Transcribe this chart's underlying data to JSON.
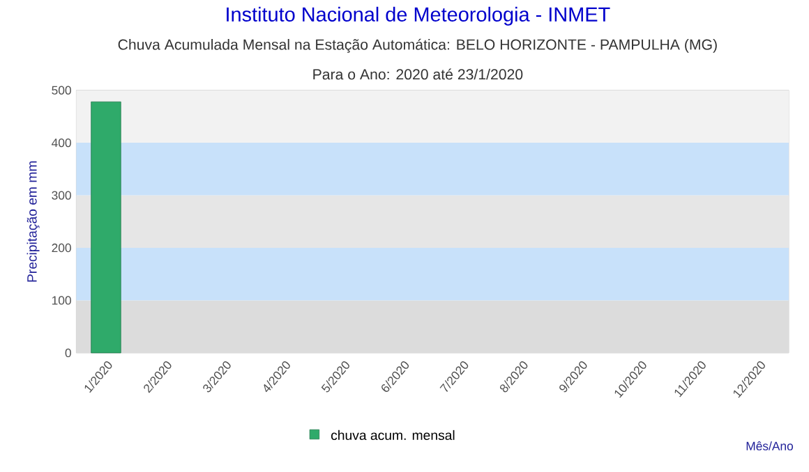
{
  "chart_data": {
    "type": "bar",
    "title": "Instituto Nacional de Meteorologia - INMET",
    "subtitle": "Chuva Acumulada Mensal na Estação Automática: BELO HORIZONTE - PAMPULHA (MG)",
    "annotations": [
      "Para o Ano: 2020 até 23/1/2020"
    ],
    "xlabel": "Mês/Ano",
    "ylabel": "Precipitação em mm",
    "categories": [
      "1/2020",
      "2/2020",
      "3/2020",
      "4/2020",
      "5/2020",
      "6/2020",
      "7/2020",
      "8/2020",
      "9/2020",
      "10/2020",
      "11/2020",
      "12/2020"
    ],
    "series": [
      {
        "name": "chuva acum. mensal",
        "color": "#2faa6a",
        "values": [
          478,
          null,
          null,
          null,
          null,
          null,
          null,
          null,
          null,
          null,
          null,
          null
        ]
      }
    ],
    "ylim": [
      0,
      500
    ],
    "yticks": [
      0,
      100,
      200,
      300,
      400,
      500
    ],
    "bands": [
      {
        "axis": "y",
        "from": 0,
        "to": 100,
        "color": "#dcdcdc"
      },
      {
        "axis": "y",
        "from": 100,
        "to": 200,
        "color": "#c8e1fa"
      },
      {
        "axis": "y",
        "from": 200,
        "to": 300,
        "color": "#e6e6e6"
      },
      {
        "axis": "y",
        "from": 300,
        "to": 400,
        "color": "#c8e1fa"
      },
      {
        "axis": "y",
        "from": 400,
        "to": 500,
        "color": "#f2f2f2"
      }
    ],
    "legend": "bottom",
    "grid": false
  }
}
